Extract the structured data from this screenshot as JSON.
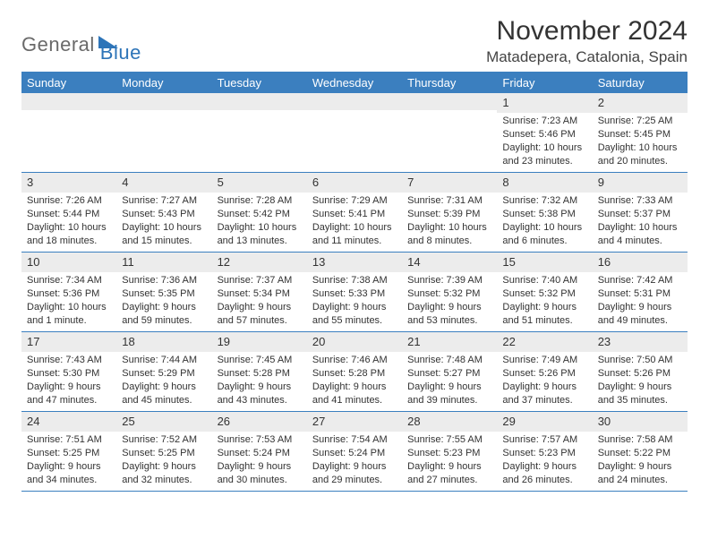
{
  "logo": {
    "part1": "General",
    "part2": "Blue"
  },
  "title": "November 2024",
  "location": "Matadepera, Catalonia, Spain",
  "colors": {
    "header_blue": "#3b7fbf",
    "daynum_bg": "#ececec",
    "border_blue": "#3b7fbf",
    "logo_gray": "#6a6a6a",
    "logo_blue": "#2d74b8",
    "text": "#333333",
    "background": "#ffffff"
  },
  "weekdays": [
    "Sunday",
    "Monday",
    "Tuesday",
    "Wednesday",
    "Thursday",
    "Friday",
    "Saturday"
  ],
  "weeks": [
    [
      {
        "n": "",
        "lines": []
      },
      {
        "n": "",
        "lines": []
      },
      {
        "n": "",
        "lines": []
      },
      {
        "n": "",
        "lines": []
      },
      {
        "n": "",
        "lines": []
      },
      {
        "n": "1",
        "lines": [
          "Sunrise: 7:23 AM",
          "Sunset: 5:46 PM",
          "Daylight: 10 hours",
          "and 23 minutes."
        ]
      },
      {
        "n": "2",
        "lines": [
          "Sunrise: 7:25 AM",
          "Sunset: 5:45 PM",
          "Daylight: 10 hours",
          "and 20 minutes."
        ]
      }
    ],
    [
      {
        "n": "3",
        "lines": [
          "Sunrise: 7:26 AM",
          "Sunset: 5:44 PM",
          "Daylight: 10 hours",
          "and 18 minutes."
        ]
      },
      {
        "n": "4",
        "lines": [
          "Sunrise: 7:27 AM",
          "Sunset: 5:43 PM",
          "Daylight: 10 hours",
          "and 15 minutes."
        ]
      },
      {
        "n": "5",
        "lines": [
          "Sunrise: 7:28 AM",
          "Sunset: 5:42 PM",
          "Daylight: 10 hours",
          "and 13 minutes."
        ]
      },
      {
        "n": "6",
        "lines": [
          "Sunrise: 7:29 AM",
          "Sunset: 5:41 PM",
          "Daylight: 10 hours",
          "and 11 minutes."
        ]
      },
      {
        "n": "7",
        "lines": [
          "Sunrise: 7:31 AM",
          "Sunset: 5:39 PM",
          "Daylight: 10 hours",
          "and 8 minutes."
        ]
      },
      {
        "n": "8",
        "lines": [
          "Sunrise: 7:32 AM",
          "Sunset: 5:38 PM",
          "Daylight: 10 hours",
          "and 6 minutes."
        ]
      },
      {
        "n": "9",
        "lines": [
          "Sunrise: 7:33 AM",
          "Sunset: 5:37 PM",
          "Daylight: 10 hours",
          "and 4 minutes."
        ]
      }
    ],
    [
      {
        "n": "10",
        "lines": [
          "Sunrise: 7:34 AM",
          "Sunset: 5:36 PM",
          "Daylight: 10 hours",
          "and 1 minute."
        ]
      },
      {
        "n": "11",
        "lines": [
          "Sunrise: 7:36 AM",
          "Sunset: 5:35 PM",
          "Daylight: 9 hours",
          "and 59 minutes."
        ]
      },
      {
        "n": "12",
        "lines": [
          "Sunrise: 7:37 AM",
          "Sunset: 5:34 PM",
          "Daylight: 9 hours",
          "and 57 minutes."
        ]
      },
      {
        "n": "13",
        "lines": [
          "Sunrise: 7:38 AM",
          "Sunset: 5:33 PM",
          "Daylight: 9 hours",
          "and 55 minutes."
        ]
      },
      {
        "n": "14",
        "lines": [
          "Sunrise: 7:39 AM",
          "Sunset: 5:32 PM",
          "Daylight: 9 hours",
          "and 53 minutes."
        ]
      },
      {
        "n": "15",
        "lines": [
          "Sunrise: 7:40 AM",
          "Sunset: 5:32 PM",
          "Daylight: 9 hours",
          "and 51 minutes."
        ]
      },
      {
        "n": "16",
        "lines": [
          "Sunrise: 7:42 AM",
          "Sunset: 5:31 PM",
          "Daylight: 9 hours",
          "and 49 minutes."
        ]
      }
    ],
    [
      {
        "n": "17",
        "lines": [
          "Sunrise: 7:43 AM",
          "Sunset: 5:30 PM",
          "Daylight: 9 hours",
          "and 47 minutes."
        ]
      },
      {
        "n": "18",
        "lines": [
          "Sunrise: 7:44 AM",
          "Sunset: 5:29 PM",
          "Daylight: 9 hours",
          "and 45 minutes."
        ]
      },
      {
        "n": "19",
        "lines": [
          "Sunrise: 7:45 AM",
          "Sunset: 5:28 PM",
          "Daylight: 9 hours",
          "and 43 minutes."
        ]
      },
      {
        "n": "20",
        "lines": [
          "Sunrise: 7:46 AM",
          "Sunset: 5:28 PM",
          "Daylight: 9 hours",
          "and 41 minutes."
        ]
      },
      {
        "n": "21",
        "lines": [
          "Sunrise: 7:48 AM",
          "Sunset: 5:27 PM",
          "Daylight: 9 hours",
          "and 39 minutes."
        ]
      },
      {
        "n": "22",
        "lines": [
          "Sunrise: 7:49 AM",
          "Sunset: 5:26 PM",
          "Daylight: 9 hours",
          "and 37 minutes."
        ]
      },
      {
        "n": "23",
        "lines": [
          "Sunrise: 7:50 AM",
          "Sunset: 5:26 PM",
          "Daylight: 9 hours",
          "and 35 minutes."
        ]
      }
    ],
    [
      {
        "n": "24",
        "lines": [
          "Sunrise: 7:51 AM",
          "Sunset: 5:25 PM",
          "Daylight: 9 hours",
          "and 34 minutes."
        ]
      },
      {
        "n": "25",
        "lines": [
          "Sunrise: 7:52 AM",
          "Sunset: 5:25 PM",
          "Daylight: 9 hours",
          "and 32 minutes."
        ]
      },
      {
        "n": "26",
        "lines": [
          "Sunrise: 7:53 AM",
          "Sunset: 5:24 PM",
          "Daylight: 9 hours",
          "and 30 minutes."
        ]
      },
      {
        "n": "27",
        "lines": [
          "Sunrise: 7:54 AM",
          "Sunset: 5:24 PM",
          "Daylight: 9 hours",
          "and 29 minutes."
        ]
      },
      {
        "n": "28",
        "lines": [
          "Sunrise: 7:55 AM",
          "Sunset: 5:23 PM",
          "Daylight: 9 hours",
          "and 27 minutes."
        ]
      },
      {
        "n": "29",
        "lines": [
          "Sunrise: 7:57 AM",
          "Sunset: 5:23 PM",
          "Daylight: 9 hours",
          "and 26 minutes."
        ]
      },
      {
        "n": "30",
        "lines": [
          "Sunrise: 7:58 AM",
          "Sunset: 5:22 PM",
          "Daylight: 9 hours",
          "and 24 minutes."
        ]
      }
    ]
  ]
}
